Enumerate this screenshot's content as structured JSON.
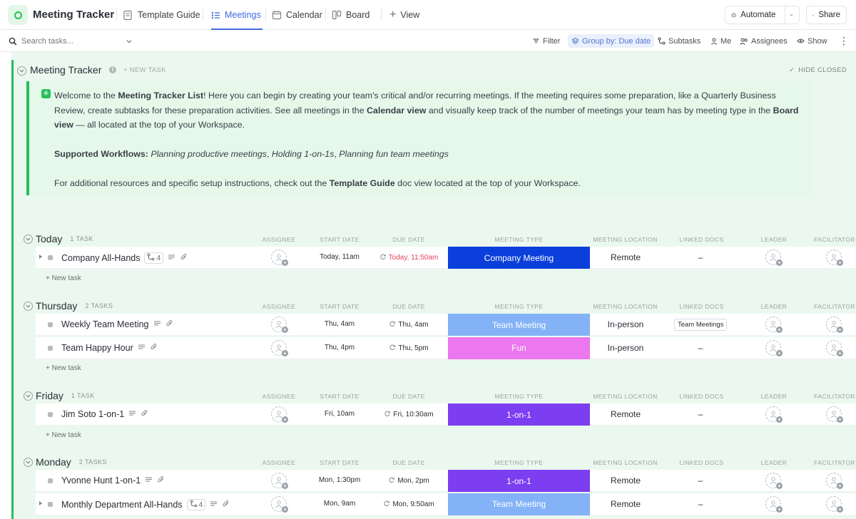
{
  "app": {
    "title": "Meeting Tracker"
  },
  "tabs": [
    {
      "label": "Template Guide",
      "icon": "doc-icon"
    },
    {
      "label": "Meetings",
      "icon": "list-icon",
      "active": true
    },
    {
      "label": "Calendar",
      "icon": "calendar-icon"
    },
    {
      "label": "Board",
      "icon": "board-icon"
    },
    {
      "label": "View",
      "icon": "plus-icon"
    }
  ],
  "header_actions": {
    "automate": "Automate",
    "share": "Share"
  },
  "toolbar": {
    "search_placeholder": "Search tasks...",
    "filter": "Filter",
    "group_by": "Group by: Due date",
    "subtasks": "Subtasks",
    "me": "Me",
    "assignees": "Assignees",
    "show": "Show"
  },
  "list": {
    "title": "Meeting Tracker",
    "new_task": "+ NEW TASK",
    "hide_closed": "HIDE CLOSED"
  },
  "description": {
    "p1_a": "Welcome to the ",
    "p1_b": "Meeting Tracker List",
    "p1_c": "! Here you can begin by creating your team's critical and/or recurring meetings. If the meeting requires some preparation, like a Quarterly Business Review, create subtasks for these preparation activities. See all meetings in the ",
    "p1_d": "Calendar view",
    "p1_e": " and visually keep track of the number of meetings your team has by meeting type in the ",
    "p1_f": "Board view",
    "p1_g": " — all located at the top of your Workspace.",
    "p2_a": "Supported Workflows: ",
    "p2_b": "Planning productive meetings",
    "p2_c": ", ",
    "p2_d": "Holding 1-on-1s",
    "p2_e": ", ",
    "p2_f": "Planning fun team meetings",
    "p3_a": "For additional resources and specific setup instructions, check out the ",
    "p3_b": "Template Guide",
    "p3_c": " doc view located at the top of your Workspace."
  },
  "columns": [
    "ASSIGNEE",
    "START DATE",
    "DUE DATE",
    "MEETING TYPE",
    "MEETING LOCATION",
    "LINKED DOCS",
    "LEADER",
    "FACILITATOR"
  ],
  "add_task_label": "+ New task",
  "meeting_type_colors": {
    "Company Meeting": "#0a3fdc",
    "Team Meeting": "#84b2f7",
    "Fun": "#ec77ee",
    "1-on-1": "#7c3ef0"
  },
  "groups": [
    {
      "title": "Today",
      "count": "1 TASK",
      "tasks": [
        {
          "name": "Company All-Hands",
          "subtasks": "4",
          "start": "Today, 11am",
          "due": "Today, 11:50am",
          "due_overdue": true,
          "type": "Company Meeting",
          "location": "Remote",
          "docs": "–"
        }
      ]
    },
    {
      "title": "Thursday",
      "count": "2 TASKS",
      "tasks": [
        {
          "name": "Weekly Team Meeting",
          "start": "Thu, 4am",
          "due": "Thu, 4am",
          "type": "Team Meeting",
          "location": "In-person",
          "docs_chip": "Team Meetings"
        },
        {
          "name": "Team Happy Hour",
          "start": "Thu, 4pm",
          "due": "Thu, 5pm",
          "type": "Fun",
          "location": "In-person",
          "docs": "–"
        }
      ]
    },
    {
      "title": "Friday",
      "count": "1 TASK",
      "tasks": [
        {
          "name": "Jim Soto 1-on-1",
          "start": "Fri, 10am",
          "due": "Fri, 10:30am",
          "type": "1-on-1",
          "location": "Remote",
          "docs": "–"
        }
      ]
    },
    {
      "title": "Monday",
      "count": "2 TASKS",
      "tasks": [
        {
          "name": "Yvonne Hunt 1-on-1",
          "start": "Mon, 1:30pm",
          "due": "Mon, 2pm",
          "type": "1-on-1",
          "location": "Remote",
          "docs": "–"
        },
        {
          "name": "Monthly Department All-Hands",
          "subtasks": "4",
          "start": "Mon, 9am",
          "due": "Mon, 9:50am",
          "type": "Team Meeting",
          "location": "Remote",
          "docs": "–"
        }
      ]
    }
  ]
}
